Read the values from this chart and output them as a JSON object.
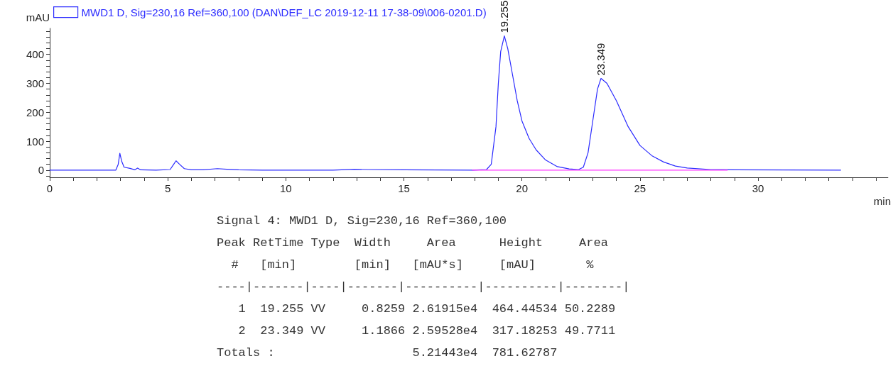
{
  "chart_data": {
    "type": "line",
    "xlabel": "min",
    "ylabel": "mAU",
    "legend": "top left",
    "marker": "none",
    "line_style": "solid",
    "grid": false,
    "xlim": [
      0,
      35.5
    ],
    "xticks": [
      0,
      {
        "value": 1,
        "label": null
      },
      {
        "value": 2,
        "label": null
      },
      {
        "value": 3,
        "label": null
      },
      {
        "value": 4,
        "label": null
      },
      5,
      {
        "value": 6,
        "label": null
      },
      {
        "value": 7,
        "label": null
      },
      {
        "value": 8,
        "label": null
      },
      {
        "value": 9,
        "label": null
      },
      10,
      {
        "value": 11,
        "label": null
      },
      {
        "value": 12,
        "label": null
      },
      {
        "value": 13,
        "label": null
      },
      {
        "value": 14,
        "label": null
      },
      15,
      {
        "value": 16,
        "label": null
      },
      {
        "value": 17,
        "label": null
      },
      {
        "value": 18,
        "label": null
      },
      {
        "value": 19,
        "label": null
      },
      20,
      {
        "value": 21,
        "label": null
      },
      {
        "value": 22,
        "label": null
      },
      {
        "value": 23,
        "label": null
      },
      {
        "value": 24,
        "label": null
      },
      25,
      {
        "value": 26,
        "label": null
      },
      {
        "value": 27,
        "label": null
      },
      {
        "value": 28,
        "label": null
      },
      {
        "value": 29,
        "label": null
      },
      30,
      {
        "value": 31,
        "label": null
      },
      {
        "value": 32,
        "label": null
      },
      {
        "value": 33,
        "label": null
      },
      {
        "value": 34,
        "label": null
      },
      {
        "value": 35,
        "label": null
      }
    ],
    "ylim": [
      -25,
      490
    ],
    "yticks": [
      {
        "value": -20,
        "label": null
      },
      0,
      {
        "value": 20,
        "label": null
      },
      {
        "value": 40,
        "label": null
      },
      {
        "value": 60,
        "label": null
      },
      {
        "value": 80,
        "label": null
      },
      100,
      {
        "value": 120,
        "label": null
      },
      {
        "value": 140,
        "label": null
      },
      {
        "value": 160,
        "label": null
      },
      {
        "value": 180,
        "label": null
      },
      200,
      {
        "value": 220,
        "label": null
      },
      {
        "value": 240,
        "label": null
      },
      {
        "value": 260,
        "label": null
      },
      {
        "value": 280,
        "label": null
      },
      300,
      {
        "value": 320,
        "label": null
      },
      {
        "value": 340,
        "label": null
      },
      {
        "value": 360,
        "label": null
      },
      {
        "value": 380,
        "label": null
      },
      400,
      {
        "value": 420,
        "label": null
      },
      {
        "value": 440,
        "label": null
      },
      {
        "value": 460,
        "label": null
      },
      {
        "value": 480,
        "label": null
      }
    ],
    "series": [
      {
        "name": "MWD1 D, Sig=230,16 Ref=360,100 (DAN\\DEF_LC 2019-12-11 17-38-09\\006-0201.D)",
        "color": "#2b2bff",
        "x": [
          0,
          2.8,
          2.9,
          2.97,
          3.05,
          3.15,
          3.4,
          3.6,
          3.72,
          3.85,
          4.5,
          5.1,
          5.25,
          5.35,
          5.5,
          5.7,
          6,
          6.5,
          7.1,
          7.5,
          8,
          9,
          12,
          12.9,
          13.5,
          15,
          17.9,
          18.5,
          18.7,
          18.9,
          19.0,
          19.1,
          19.255,
          19.4,
          19.6,
          19.8,
          20,
          20.3,
          20.6,
          21,
          21.5,
          22,
          22.4,
          22.6,
          22.8,
          23,
          23.2,
          23.349,
          23.6,
          24,
          24.5,
          25,
          25.5,
          26,
          26.5,
          27,
          28,
          29,
          33.5
        ],
        "values": [
          0,
          0,
          20,
          58,
          30,
          10,
          6,
          1,
          7,
          1,
          0,
          2,
          20,
          32,
          20,
          5,
          1,
          1,
          5,
          3,
          1,
          0,
          0,
          3,
          2,
          1,
          0,
          2,
          20,
          150,
          300,
          410,
          464,
          420,
          330,
          240,
          170,
          110,
          70,
          35,
          12,
          4,
          2,
          10,
          60,
          170,
          280,
          317,
          300,
          240,
          150,
          85,
          50,
          28,
          14,
          7,
          2,
          1,
          0
        ]
      },
      {
        "color": "#ff33ff",
        "x": [
          17.9,
          22.4,
          28.7
        ],
        "values": [
          0,
          0,
          0
        ]
      }
    ],
    "annotations": [
      {
        "text": "19.255",
        "x": 19.255,
        "y": 464
      },
      {
        "text": "23.349",
        "x": 23.349,
        "y": 317
      },
      "Signal 4: MWD1 D, Sig=230,16 Ref=360,100",
      "Peak RetTime Type  Width     Area      Height     Area  ",
      "  #   [min]        [min]   [mAU*s]     [mAU]       %    ",
      "----|-------|----|-------|----------|----------|--------|",
      "   1  19.255 VV     0.8259 2.61915e4  464.44534 50.2289",
      "   2  23.349 VV     1.1866 2.59528e4  317.18253 49.7711",
      "Totals :                   5.21443e4  781.62787"
    ]
  }
}
